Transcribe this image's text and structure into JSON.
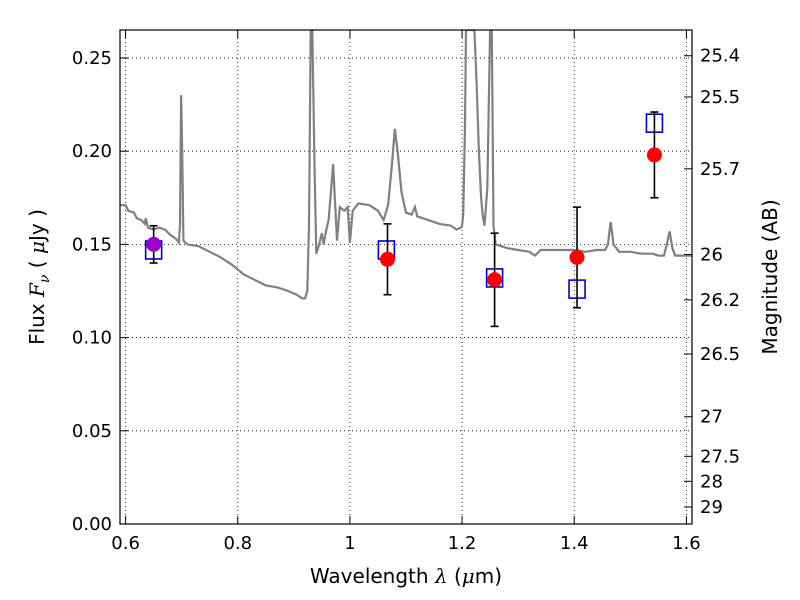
{
  "chart_data": {
    "type": "scatter",
    "title": "",
    "xlabel": {
      "pre": "Wavelength  ",
      "var": "λ",
      "post": " (",
      "mu": "μ",
      "unit": "m)"
    },
    "ylabel": {
      "pre": "Flux  ",
      "var": "F",
      "sub": "ν",
      "post": "  ( ",
      "mu": "μ",
      "unit": "Jy )"
    },
    "y2label": "Magnitude (AB)",
    "xlim": [
      0.59,
      1.61
    ],
    "ylim": [
      0.0,
      0.265
    ],
    "grid": true,
    "x_ticks": [
      {
        "value": 0.6,
        "label": "0.6"
      },
      {
        "value": 0.8,
        "label": "0.8"
      },
      {
        "value": 1.0,
        "label": "1"
      },
      {
        "value": 1.2,
        "label": "1.2"
      },
      {
        "value": 1.4,
        "label": "1.4"
      },
      {
        "value": 1.6,
        "label": "1.6"
      }
    ],
    "y_ticks": [
      {
        "value": 0.0,
        "label": "0.00"
      },
      {
        "value": 0.05,
        "label": "0.05"
      },
      {
        "value": 0.1,
        "label": "0.10"
      },
      {
        "value": 0.15,
        "label": "0.15"
      },
      {
        "value": 0.2,
        "label": "0.20"
      },
      {
        "value": 0.25,
        "label": "0.25"
      }
    ],
    "y2_ticks": [
      {
        "mag": 25.4,
        "label": "25.4"
      },
      {
        "mag": 25.5,
        "label": "25.5"
      },
      {
        "mag": 25.7,
        "label": "25.7"
      },
      {
        "mag": 26.0,
        "label": "26"
      },
      {
        "mag": 26.2,
        "label": "26.2"
      },
      {
        "mag": 26.5,
        "label": "26.5"
      },
      {
        "mag": 27.0,
        "label": "27"
      },
      {
        "mag": 27.5,
        "label": "27.5"
      },
      {
        "mag": 28.0,
        "label": "28"
      },
      {
        "mag": 29.0,
        "label": "29"
      }
    ],
    "series": [
      {
        "kind": "model_spectrum",
        "color": "#808080",
        "points": [
          [
            0.59,
            0.171
          ],
          [
            0.6,
            0.171
          ],
          [
            0.605,
            0.168
          ],
          [
            0.615,
            0.167
          ],
          [
            0.62,
            0.164
          ],
          [
            0.628,
            0.163
          ],
          [
            0.634,
            0.161
          ],
          [
            0.636,
            0.164
          ],
          [
            0.64,
            0.159
          ],
          [
            0.65,
            0.158
          ],
          [
            0.66,
            0.159
          ],
          [
            0.67,
            0.158
          ],
          [
            0.68,
            0.155
          ],
          [
            0.69,
            0.153
          ],
          [
            0.695,
            0.151
          ],
          [
            0.697,
            0.16
          ],
          [
            0.699,
            0.23
          ],
          [
            0.701,
            0.2
          ],
          [
            0.703,
            0.152
          ],
          [
            0.71,
            0.15
          ],
          [
            0.73,
            0.149
          ],
          [
            0.75,
            0.146
          ],
          [
            0.77,
            0.143
          ],
          [
            0.79,
            0.139
          ],
          [
            0.81,
            0.134
          ],
          [
            0.83,
            0.131
          ],
          [
            0.85,
            0.128
          ],
          [
            0.87,
            0.127
          ],
          [
            0.89,
            0.125
          ],
          [
            0.905,
            0.123
          ],
          [
            0.915,
            0.121
          ],
          [
            0.92,
            0.121
          ],
          [
            0.924,
            0.125
          ],
          [
            0.927,
            0.16
          ],
          [
            0.93,
            0.265
          ],
          [
            0.933,
            0.265
          ],
          [
            0.937,
            0.19
          ],
          [
            0.94,
            0.145
          ],
          [
            0.945,
            0.15
          ],
          [
            0.95,
            0.156
          ],
          [
            0.953,
            0.15
          ],
          [
            0.958,
            0.158
          ],
          [
            0.962,
            0.163
          ],
          [
            0.966,
            0.178
          ],
          [
            0.97,
            0.193
          ],
          [
            0.974,
            0.17
          ],
          [
            0.977,
            0.152
          ],
          [
            0.982,
            0.17
          ],
          [
            0.99,
            0.168
          ],
          [
            0.996,
            0.17
          ],
          [
            1.0,
            0.151
          ],
          [
            1.005,
            0.168
          ],
          [
            1.015,
            0.172
          ],
          [
            1.035,
            0.171
          ],
          [
            1.05,
            0.168
          ],
          [
            1.06,
            0.163
          ],
          [
            1.068,
            0.171
          ],
          [
            1.075,
            0.193
          ],
          [
            1.08,
            0.212
          ],
          [
            1.085,
            0.2
          ],
          [
            1.092,
            0.178
          ],
          [
            1.1,
            0.167
          ],
          [
            1.11,
            0.166
          ],
          [
            1.116,
            0.17
          ],
          [
            1.12,
            0.165
          ],
          [
            1.14,
            0.163
          ],
          [
            1.16,
            0.161
          ],
          [
            1.18,
            0.16
          ],
          [
            1.19,
            0.158
          ],
          [
            1.198,
            0.159
          ],
          [
            1.2,
            0.16
          ],
          [
            1.202,
            0.166
          ],
          [
            1.205,
            0.21
          ],
          [
            1.207,
            0.265
          ],
          [
            1.222,
            0.265
          ],
          [
            1.226,
            0.235
          ],
          [
            1.23,
            0.2
          ],
          [
            1.234,
            0.175
          ],
          [
            1.237,
            0.165
          ],
          [
            1.24,
            0.16
          ],
          [
            1.245,
            0.18
          ],
          [
            1.25,
            0.265
          ],
          [
            1.253,
            0.265
          ],
          [
            1.256,
            0.16
          ],
          [
            1.26,
            0.15
          ],
          [
            1.28,
            0.148
          ],
          [
            1.3,
            0.147
          ],
          [
            1.32,
            0.146
          ],
          [
            1.33,
            0.144
          ],
          [
            1.34,
            0.147
          ],
          [
            1.36,
            0.147
          ],
          [
            1.38,
            0.147
          ],
          [
            1.4,
            0.147
          ],
          [
            1.42,
            0.146
          ],
          [
            1.44,
            0.147
          ],
          [
            1.455,
            0.147
          ],
          [
            1.46,
            0.15
          ],
          [
            1.465,
            0.162
          ],
          [
            1.47,
            0.15
          ],
          [
            1.48,
            0.146
          ],
          [
            1.5,
            0.146
          ],
          [
            1.52,
            0.145
          ],
          [
            1.54,
            0.145
          ],
          [
            1.55,
            0.144
          ],
          [
            1.56,
            0.144
          ],
          [
            1.565,
            0.15
          ],
          [
            1.57,
            0.157
          ],
          [
            1.575,
            0.148
          ],
          [
            1.58,
            0.144
          ],
          [
            1.61,
            0.144
          ]
        ]
      },
      {
        "kind": "model_photometry",
        "marker": "open-square",
        "color": "#0000cc",
        "points": [
          [
            0.65,
            0.147
          ],
          [
            1.065,
            0.147
          ],
          [
            1.258,
            0.132
          ],
          [
            1.405,
            0.126
          ],
          [
            1.543,
            0.215
          ]
        ]
      },
      {
        "kind": "observed",
        "marker": "filled-circle",
        "color": "#ff0000",
        "points": [
          {
            "x": 0.65,
            "y": 0.15,
            "err": 0.01,
            "color": "#9900cc"
          },
          {
            "x": 1.067,
            "y": 0.142,
            "err": 0.019
          },
          {
            "x": 1.258,
            "y": 0.131,
            "err": 0.025
          },
          {
            "x": 1.405,
            "y": 0.143,
            "err": 0.027
          },
          {
            "x": 1.543,
            "y": 0.198,
            "err": 0.023
          }
        ]
      }
    ]
  }
}
